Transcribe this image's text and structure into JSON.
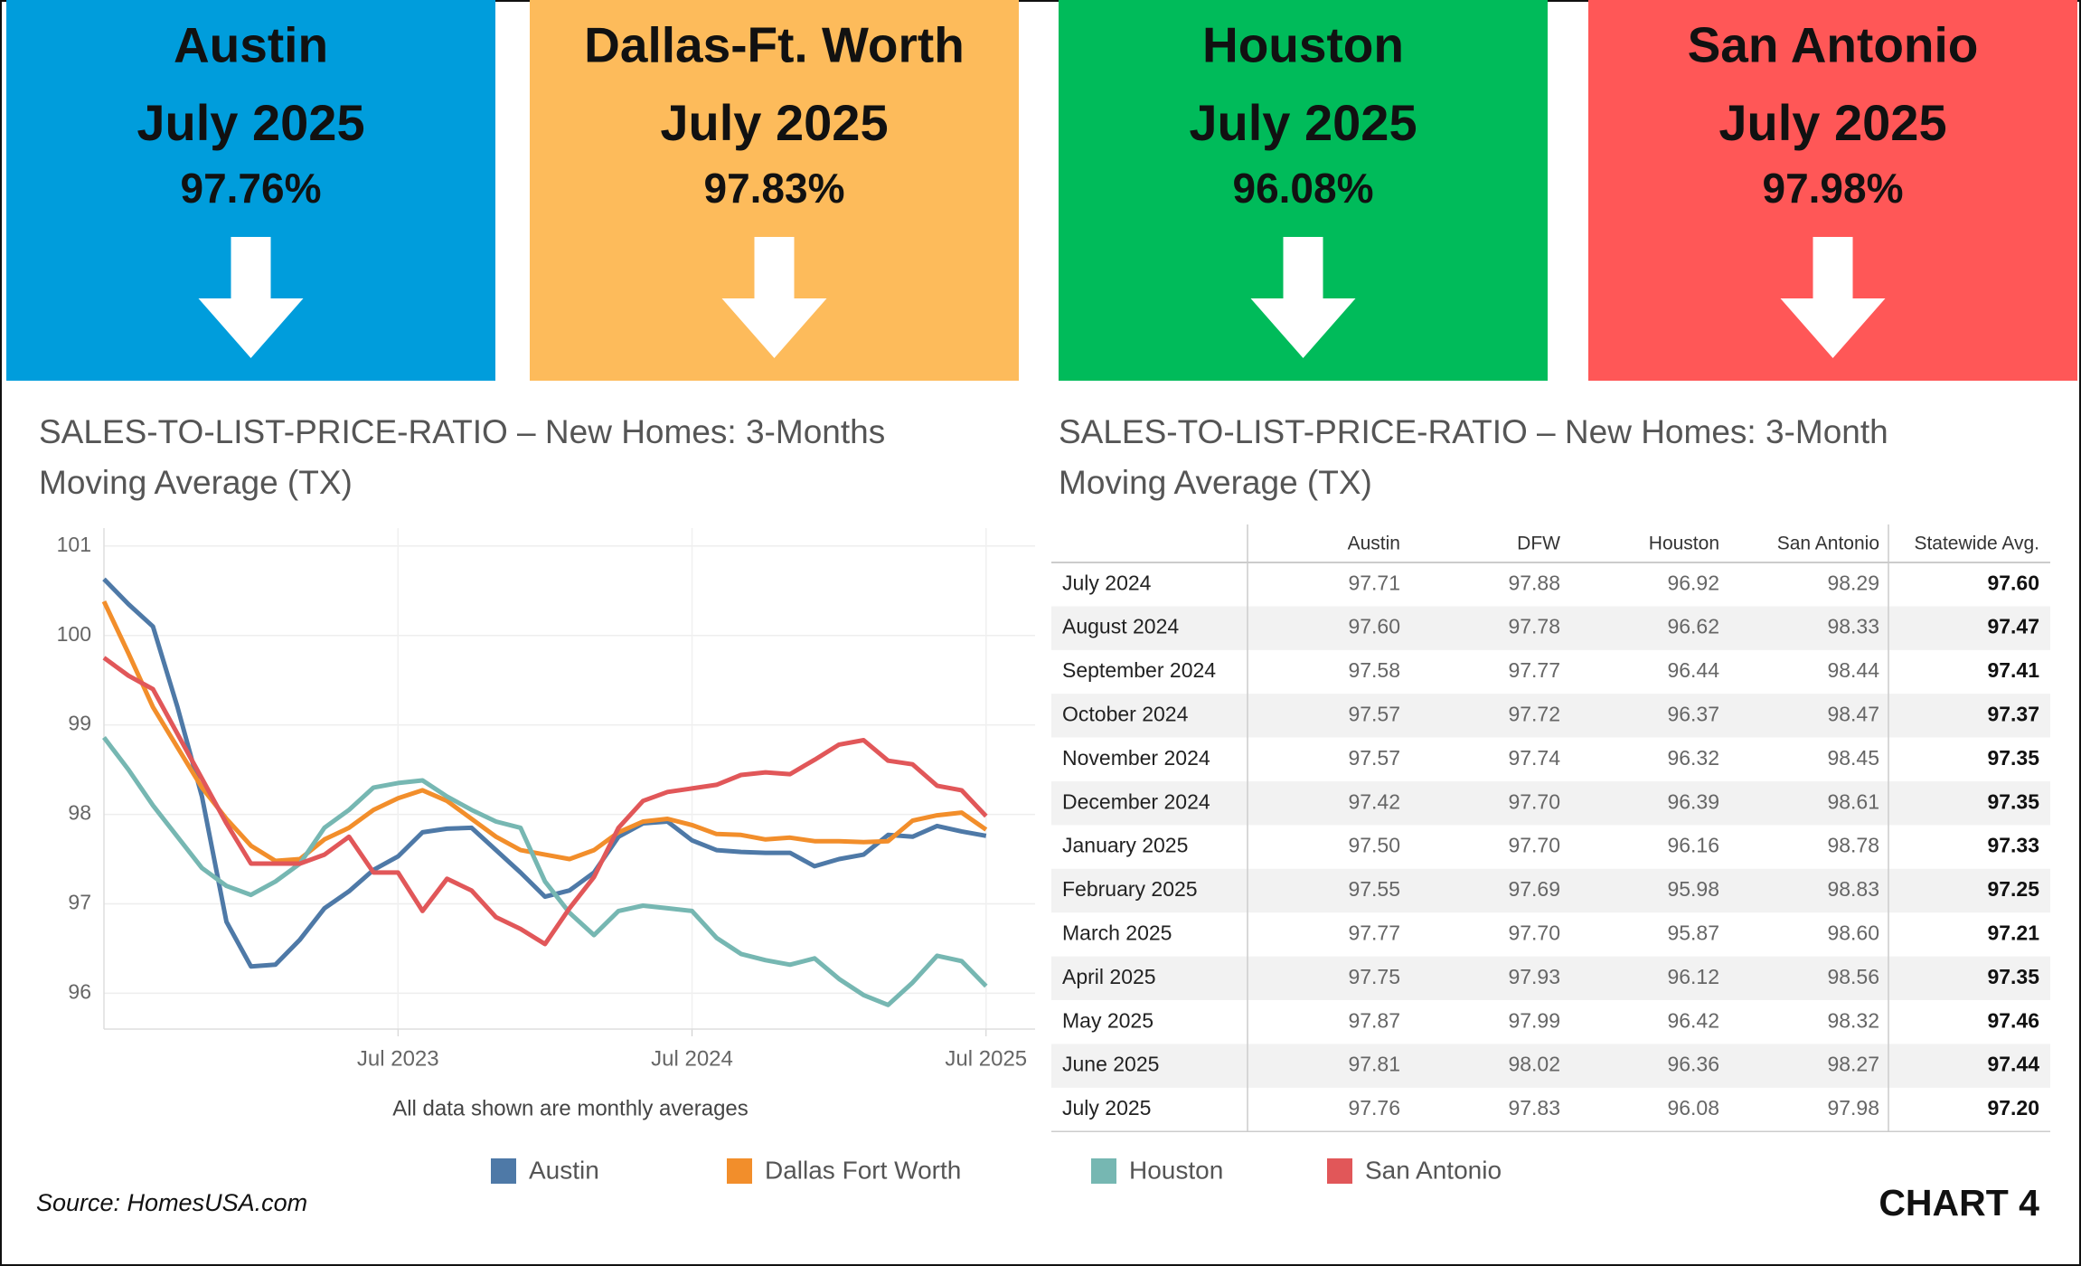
{
  "headers": [
    {
      "city": "Austin",
      "period": "July 2025",
      "value": "97.76%",
      "color": "#009ddc"
    },
    {
      "city": "Dallas-Ft. Worth",
      "period": "July 2025",
      "value": "97.83%",
      "color": "#fdbb5b"
    },
    {
      "city": "Houston",
      "period": "July 2025",
      "value": "96.08%",
      "color": "#00bb5a"
    },
    {
      "city": "San Antonio",
      "period": "July 2025",
      "value": "97.98%",
      "color": "#ff5757"
    }
  ],
  "chart_data": {
    "type": "line",
    "title": "SALES-TO-LIST-PRICE-RATIO – New Homes: 3-Months Moving Average (TX)",
    "subtitle": "All data shown are monthly averages",
    "x": [
      "2022-07",
      "2022-08",
      "2022-09",
      "2022-10",
      "2022-11",
      "2022-12",
      "2023-01",
      "2023-02",
      "2023-03",
      "2023-04",
      "2023-05",
      "2023-06",
      "2023-07",
      "2023-08",
      "2023-09",
      "2023-10",
      "2023-11",
      "2023-12",
      "2024-01",
      "2024-02",
      "2024-03",
      "2024-04",
      "2024-05",
      "2024-06",
      "2024-07",
      "2024-08",
      "2024-09",
      "2024-10",
      "2024-11",
      "2024-12",
      "2025-01",
      "2025-02",
      "2025-03",
      "2025-04",
      "2025-05",
      "2025-06",
      "2025-07"
    ],
    "xlim": [
      "2022-07",
      "2025-09"
    ],
    "xticks": [
      {
        "value": "2023-07",
        "label": "Jul 2023"
      },
      {
        "value": "2024-07",
        "label": "Jul 2024"
      },
      {
        "value": "2025-07",
        "label": "Jul 2025"
      }
    ],
    "ylim": [
      95.6,
      101.2
    ],
    "yticks": [
      96,
      97,
      98,
      99,
      100,
      101
    ],
    "grid": true,
    "legend": "bottom",
    "series": [
      {
        "name": "Austin",
        "color": "#4e79a7",
        "values": [
          100.63,
          100.35,
          100.1,
          99.2,
          98.2,
          96.8,
          96.3,
          96.32,
          96.6,
          96.95,
          97.14,
          97.38,
          97.53,
          97.8,
          97.84,
          97.85,
          97.6,
          97.35,
          97.08,
          97.15,
          97.35,
          97.75,
          97.9,
          97.92,
          97.71,
          97.6,
          97.58,
          97.57,
          97.57,
          97.42,
          97.5,
          97.55,
          97.77,
          97.75,
          97.87,
          97.81,
          97.76
        ]
      },
      {
        "name": "Dallas Fort Worth",
        "color": "#f28e2b",
        "values": [
          100.38,
          99.8,
          99.2,
          98.75,
          98.3,
          97.95,
          97.65,
          97.48,
          97.5,
          97.72,
          97.85,
          98.05,
          98.18,
          98.27,
          98.15,
          97.95,
          97.75,
          97.6,
          97.55,
          97.5,
          97.6,
          97.8,
          97.92,
          97.95,
          97.88,
          97.78,
          97.77,
          97.72,
          97.74,
          97.7,
          97.7,
          97.69,
          97.7,
          97.93,
          97.99,
          98.02,
          97.83
        ]
      },
      {
        "name": "Houston",
        "color": "#76b7b2",
        "values": [
          98.86,
          98.5,
          98.1,
          97.75,
          97.4,
          97.2,
          97.1,
          97.25,
          97.45,
          97.85,
          98.05,
          98.3,
          98.35,
          98.38,
          98.2,
          98.05,
          97.92,
          97.85,
          97.25,
          96.9,
          96.65,
          96.92,
          96.98,
          96.95,
          96.92,
          96.62,
          96.44,
          96.37,
          96.32,
          96.39,
          96.16,
          95.98,
          95.87,
          96.12,
          96.42,
          96.36,
          96.08
        ]
      },
      {
        "name": "San Antonio",
        "color": "#e15759",
        "values": [
          99.75,
          99.55,
          99.4,
          98.9,
          98.4,
          97.9,
          97.45,
          97.45,
          97.45,
          97.55,
          97.75,
          97.35,
          97.35,
          96.92,
          97.28,
          97.15,
          96.85,
          96.72,
          96.55,
          96.95,
          97.3,
          97.85,
          98.15,
          98.25,
          98.29,
          98.33,
          98.44,
          98.47,
          98.45,
          98.61,
          98.78,
          98.83,
          98.6,
          98.56,
          98.32,
          98.27,
          97.98
        ]
      }
    ]
  },
  "table": {
    "title": "SALES-TO-LIST-PRICE-RATIO – New Homes:  3-Month Moving Average (TX)",
    "columns": [
      "Austin",
      "DFW",
      "Houston",
      "San Antonio",
      "Statewide Avg."
    ],
    "rows": [
      [
        "July 2024",
        "97.71",
        "97.88",
        "96.92",
        "98.29",
        "97.60"
      ],
      [
        "August 2024",
        "97.60",
        "97.78",
        "96.62",
        "98.33",
        "97.47"
      ],
      [
        "September 2024",
        "97.58",
        "97.77",
        "96.44",
        "98.44",
        "97.41"
      ],
      [
        "October 2024",
        "97.57",
        "97.72",
        "96.37",
        "98.47",
        "97.37"
      ],
      [
        "November 2024",
        "97.57",
        "97.74",
        "96.32",
        "98.45",
        "97.35"
      ],
      [
        "December 2024",
        "97.42",
        "97.70",
        "96.39",
        "98.61",
        "97.35"
      ],
      [
        "January 2025",
        "97.50",
        "97.70",
        "96.16",
        "98.78",
        "97.33"
      ],
      [
        "February 2025",
        "97.55",
        "97.69",
        "95.98",
        "98.83",
        "97.25"
      ],
      [
        "March 2025",
        "97.77",
        "97.70",
        "95.87",
        "98.60",
        "97.21"
      ],
      [
        "April 2025",
        "97.75",
        "97.93",
        "96.12",
        "98.56",
        "97.35"
      ],
      [
        "May 2025",
        "97.87",
        "97.99",
        "96.42",
        "98.32",
        "97.46"
      ],
      [
        "June 2025",
        "97.81",
        "98.02",
        "96.36",
        "98.27",
        "97.44"
      ],
      [
        "July 2025",
        "97.76",
        "97.83",
        "96.08",
        "97.98",
        "97.20"
      ]
    ]
  },
  "footer": {
    "source": "Source: HomesUSA.com",
    "label": "CHART 4"
  }
}
